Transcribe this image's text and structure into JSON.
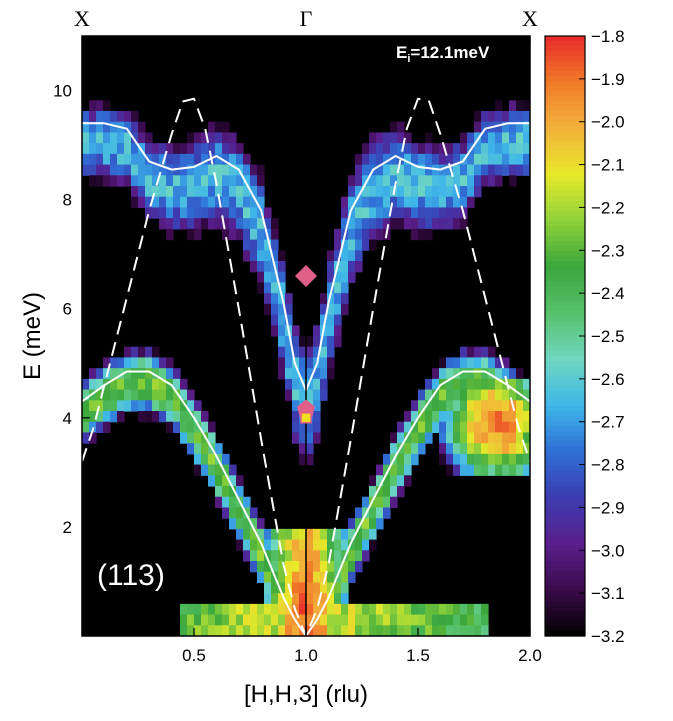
{
  "chart_data": {
    "type": "heatmap",
    "panel_label": "(113)",
    "incident_energy_label": "E",
    "incident_energy_subscript": "i",
    "incident_energy_value": "=12.1meV",
    "xlabel": "[H,H,3] (rlu)",
    "ylabel": "E (meV)",
    "xlim": [
      0.0,
      2.0
    ],
    "ylim": [
      0.0,
      11.0
    ],
    "x_ticks": [
      0.5,
      1.0,
      1.5,
      2.0
    ],
    "x_tick_labels": [
      "0.5",
      "1.0",
      "1.5",
      "2.0"
    ],
    "y_ticks": [
      2,
      4,
      6,
      8,
      10
    ],
    "y_tick_labels": [
      "2",
      "4",
      "6",
      "8",
      "10"
    ],
    "top_labels": [
      {
        "x": 0.0,
        "text": "X"
      },
      {
        "x": 1.0,
        "text": "Γ"
      },
      {
        "x": 2.0,
        "text": "X"
      }
    ],
    "colorbar": {
      "min": -3.2,
      "max": -1.8,
      "ticks": [
        -1.8,
        -1.9,
        -2.0,
        -2.1,
        -2.2,
        -2.3,
        -2.4,
        -2.5,
        -2.6,
        -2.7,
        -2.8,
        -2.9,
        -3.0,
        -3.1,
        -3.2
      ],
      "tick_labels": [
        "−1.8",
        "−1.9",
        "−2.0",
        "−2.1",
        "−2.2",
        "−2.3",
        "−2.4",
        "−2.5",
        "−2.6",
        "−2.7",
        "−2.8",
        "−2.9",
        "−3.0",
        "−3.1",
        "−3.2"
      ],
      "colormap": [
        "#000000",
        "#3a0a4a",
        "#5a1f8c",
        "#3c3cb0",
        "#2f6fd6",
        "#3fb7e8",
        "#6fd6c0",
        "#57c26b",
        "#3aa63c",
        "#8fd23a",
        "#e8e82a",
        "#f2b23a",
        "#f07a2a",
        "#e82a2a"
      ]
    },
    "features": {
      "upper_branch_intensity": -2.65,
      "lower_branch_intensity": -2.3,
      "gamma_low_intensity": -1.85,
      "x_corner_intensity": -1.9
    },
    "markers": [
      {
        "shape": "diamond",
        "x": 1.0,
        "y": 6.6,
        "color": "#e0608a"
      },
      {
        "shape": "pentagon",
        "x": 1.0,
        "y": 4.15,
        "color": "#e0608a"
      },
      {
        "shape": "square",
        "x": 1.0,
        "y": 4.0,
        "color": "#f0e020"
      }
    ],
    "series": [
      {
        "style": "solid",
        "color": "#ffffff",
        "x": [
          0.0,
          0.1,
          0.2,
          0.3,
          0.4,
          0.5,
          0.6,
          0.7,
          0.8,
          0.9,
          0.95,
          1.0,
          1.05,
          1.1,
          1.2,
          1.3,
          1.4,
          1.5,
          1.6,
          1.7,
          1.8,
          1.9,
          2.0
        ],
        "y": [
          9.4,
          9.4,
          9.3,
          8.7,
          8.55,
          8.6,
          8.8,
          8.55,
          7.8,
          6.1,
          5.0,
          4.5,
          5.0,
          6.1,
          7.8,
          8.55,
          8.8,
          8.6,
          8.55,
          8.7,
          9.3,
          9.4,
          9.4
        ]
      },
      {
        "style": "solid",
        "color": "#ffffff",
        "x": [
          0.0,
          0.1,
          0.2,
          0.3,
          0.4,
          0.5,
          0.6,
          0.7,
          0.8,
          0.85,
          0.9,
          0.95,
          1.0,
          1.05,
          1.1,
          1.15,
          1.2,
          1.3,
          1.4,
          1.5,
          1.6,
          1.7,
          1.8,
          1.9,
          2.0
        ],
        "y": [
          4.3,
          4.6,
          4.85,
          4.85,
          4.6,
          4.0,
          3.3,
          2.5,
          1.7,
          1.2,
          0.7,
          0.3,
          0.0,
          0.3,
          0.7,
          1.2,
          1.7,
          2.5,
          3.3,
          4.0,
          4.6,
          4.85,
          4.85,
          4.6,
          4.3
        ]
      },
      {
        "style": "dashed",
        "color": "#ffffff",
        "x": [
          0.0,
          0.05,
          0.1,
          0.2,
          0.3,
          0.4,
          0.45,
          0.5,
          0.55,
          0.6,
          0.7,
          0.8,
          0.9,
          0.95,
          1.0,
          1.05,
          1.1,
          1.2,
          1.3,
          1.4,
          1.45,
          1.5,
          1.55,
          1.6,
          1.7,
          1.8,
          1.9,
          1.95,
          2.0
        ],
        "y": [
          3.2,
          3.8,
          4.6,
          6.2,
          7.8,
          9.2,
          9.8,
          9.85,
          9.3,
          8.3,
          6.0,
          3.6,
          1.3,
          0.5,
          0.0,
          0.5,
          1.3,
          3.6,
          6.0,
          8.3,
          9.3,
          9.85,
          9.8,
          9.2,
          7.8,
          6.2,
          4.6,
          3.8,
          3.2
        ]
      }
    ]
  }
}
